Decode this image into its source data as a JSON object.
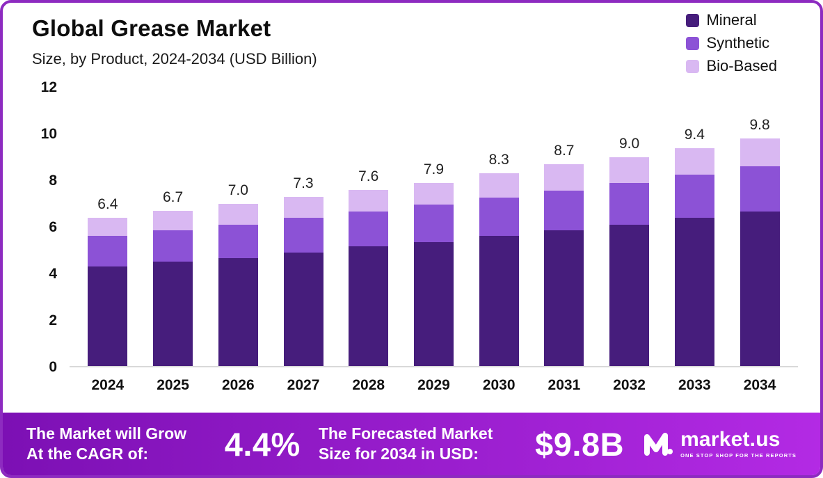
{
  "colors": {
    "mineral": "#461d7c",
    "synthetic": "#8c52d6",
    "bio_based": "#d9b8f2",
    "border": "#8d2bc0",
    "banner_gradient_start": "#7c10b4",
    "banner_gradient_end": "#b32ae4",
    "axis_line": "#d9d9d9"
  },
  "header": {
    "title": "Global Grease Market",
    "subtitle": "Size, by Product, 2024-2034 (USD Billion)"
  },
  "legend": [
    {
      "label": "Mineral",
      "color": "#461d7c"
    },
    {
      "label": "Synthetic",
      "color": "#8c52d6"
    },
    {
      "label": "Bio-Based",
      "color": "#d9b8f2"
    }
  ],
  "chart_data": {
    "type": "bar",
    "stacked": true,
    "title": "Global Grease Market",
    "subtitle": "Size, by Product, 2024-2034 (USD Billion)",
    "xlabel": "",
    "ylabel": "USD Billion",
    "ylim": [
      0,
      12
    ],
    "yticks": [
      12,
      10,
      8,
      6,
      4,
      2,
      0
    ],
    "grid": false,
    "legend_position": "top-right",
    "categories": [
      "2024",
      "2025",
      "2026",
      "2027",
      "2028",
      "2029",
      "2030",
      "2031",
      "2032",
      "2033",
      "2034"
    ],
    "series": [
      {
        "name": "Mineral",
        "color": "#461d7c",
        "values": [
          4.3,
          4.5,
          4.65,
          4.9,
          5.15,
          5.35,
          5.6,
          5.85,
          6.1,
          6.4,
          6.65
        ]
      },
      {
        "name": "Synthetic",
        "color": "#8c52d6",
        "values": [
          1.3,
          1.35,
          1.45,
          1.5,
          1.5,
          1.6,
          1.65,
          1.7,
          1.8,
          1.85,
          1.95
        ]
      },
      {
        "name": "Bio-Based",
        "color": "#d9b8f2",
        "values": [
          0.8,
          0.85,
          0.9,
          0.9,
          0.95,
          0.95,
          1.05,
          1.15,
          1.1,
          1.15,
          1.2
        ]
      }
    ],
    "totals": [
      "6.4",
      "6.7",
      "7.0",
      "7.3",
      "7.6",
      "7.9",
      "8.3",
      "8.7",
      "9.0",
      "9.4",
      "9.8"
    ]
  },
  "footer": {
    "cagr_label": "The Market will Grow At the CAGR of:",
    "cagr_value": "4.4%",
    "forecast_label": "The Forecasted Market Size for 2034 in USD:",
    "forecast_value": "$9.8B",
    "brand": {
      "name": "market.us",
      "tagline": "ONE STOP SHOP FOR THE REPORTS"
    }
  }
}
